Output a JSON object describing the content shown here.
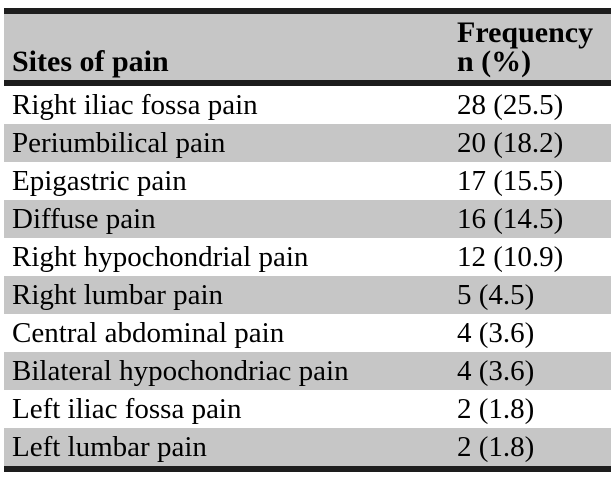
{
  "table": {
    "title_context": "Sites of pain frequency table",
    "header": {
      "site_label": "Sites of pain",
      "freq_label_line1": "Frequency",
      "freq_label_line2": "n (%)"
    },
    "rows": [
      {
        "site": "Right iliac fossa pain",
        "freq": "28 (25.5)"
      },
      {
        "site": "Periumbilical pain",
        "freq": "20 (18.2)"
      },
      {
        "site": "Epigastric pain",
        "freq": "17 (15.5)"
      },
      {
        "site": "Diffuse pain",
        "freq": "16 (14.5)"
      },
      {
        "site": "Right hypochondrial pain",
        "freq": "12 (10.9)"
      },
      {
        "site": "Right lumbar pain",
        "freq": "5 (4.5)"
      },
      {
        "site": "Central abdominal pain",
        "freq": "4 (3.6)"
      },
      {
        "site": "Bilateral hypochondriac pain",
        "freq": "4 (3.6)"
      },
      {
        "site": "Left iliac fossa pain",
        "freq": "2 (1.8)"
      },
      {
        "site": "Left lumbar pain",
        "freq": "2 (1.8)"
      }
    ],
    "colors": {
      "stripe_and_header_bg": "#c6c6c6",
      "rule": "#1d1d1d",
      "background": "#ffffff",
      "text": "#000000"
    }
  },
  "chart_data": {
    "type": "table",
    "title": "Sites of pain",
    "columns": [
      "Sites of pain",
      "Frequency n (%)"
    ],
    "categories": [
      "Right iliac fossa pain",
      "Periumbilical pain",
      "Epigastric pain",
      "Diffuse pain",
      "Right hypochondrial pain",
      "Right lumbar pain",
      "Central abdominal pain",
      "Bilateral hypochondriac pain",
      "Left iliac fossa pain",
      "Left lumbar pain"
    ],
    "series": [
      {
        "name": "n",
        "values": [
          28,
          20,
          17,
          16,
          12,
          5,
          4,
          4,
          2,
          2
        ]
      },
      {
        "name": "percent",
        "values": [
          25.5,
          18.2,
          15.5,
          14.5,
          10.9,
          4.5,
          3.6,
          3.6,
          1.8,
          1.8
        ]
      }
    ]
  }
}
